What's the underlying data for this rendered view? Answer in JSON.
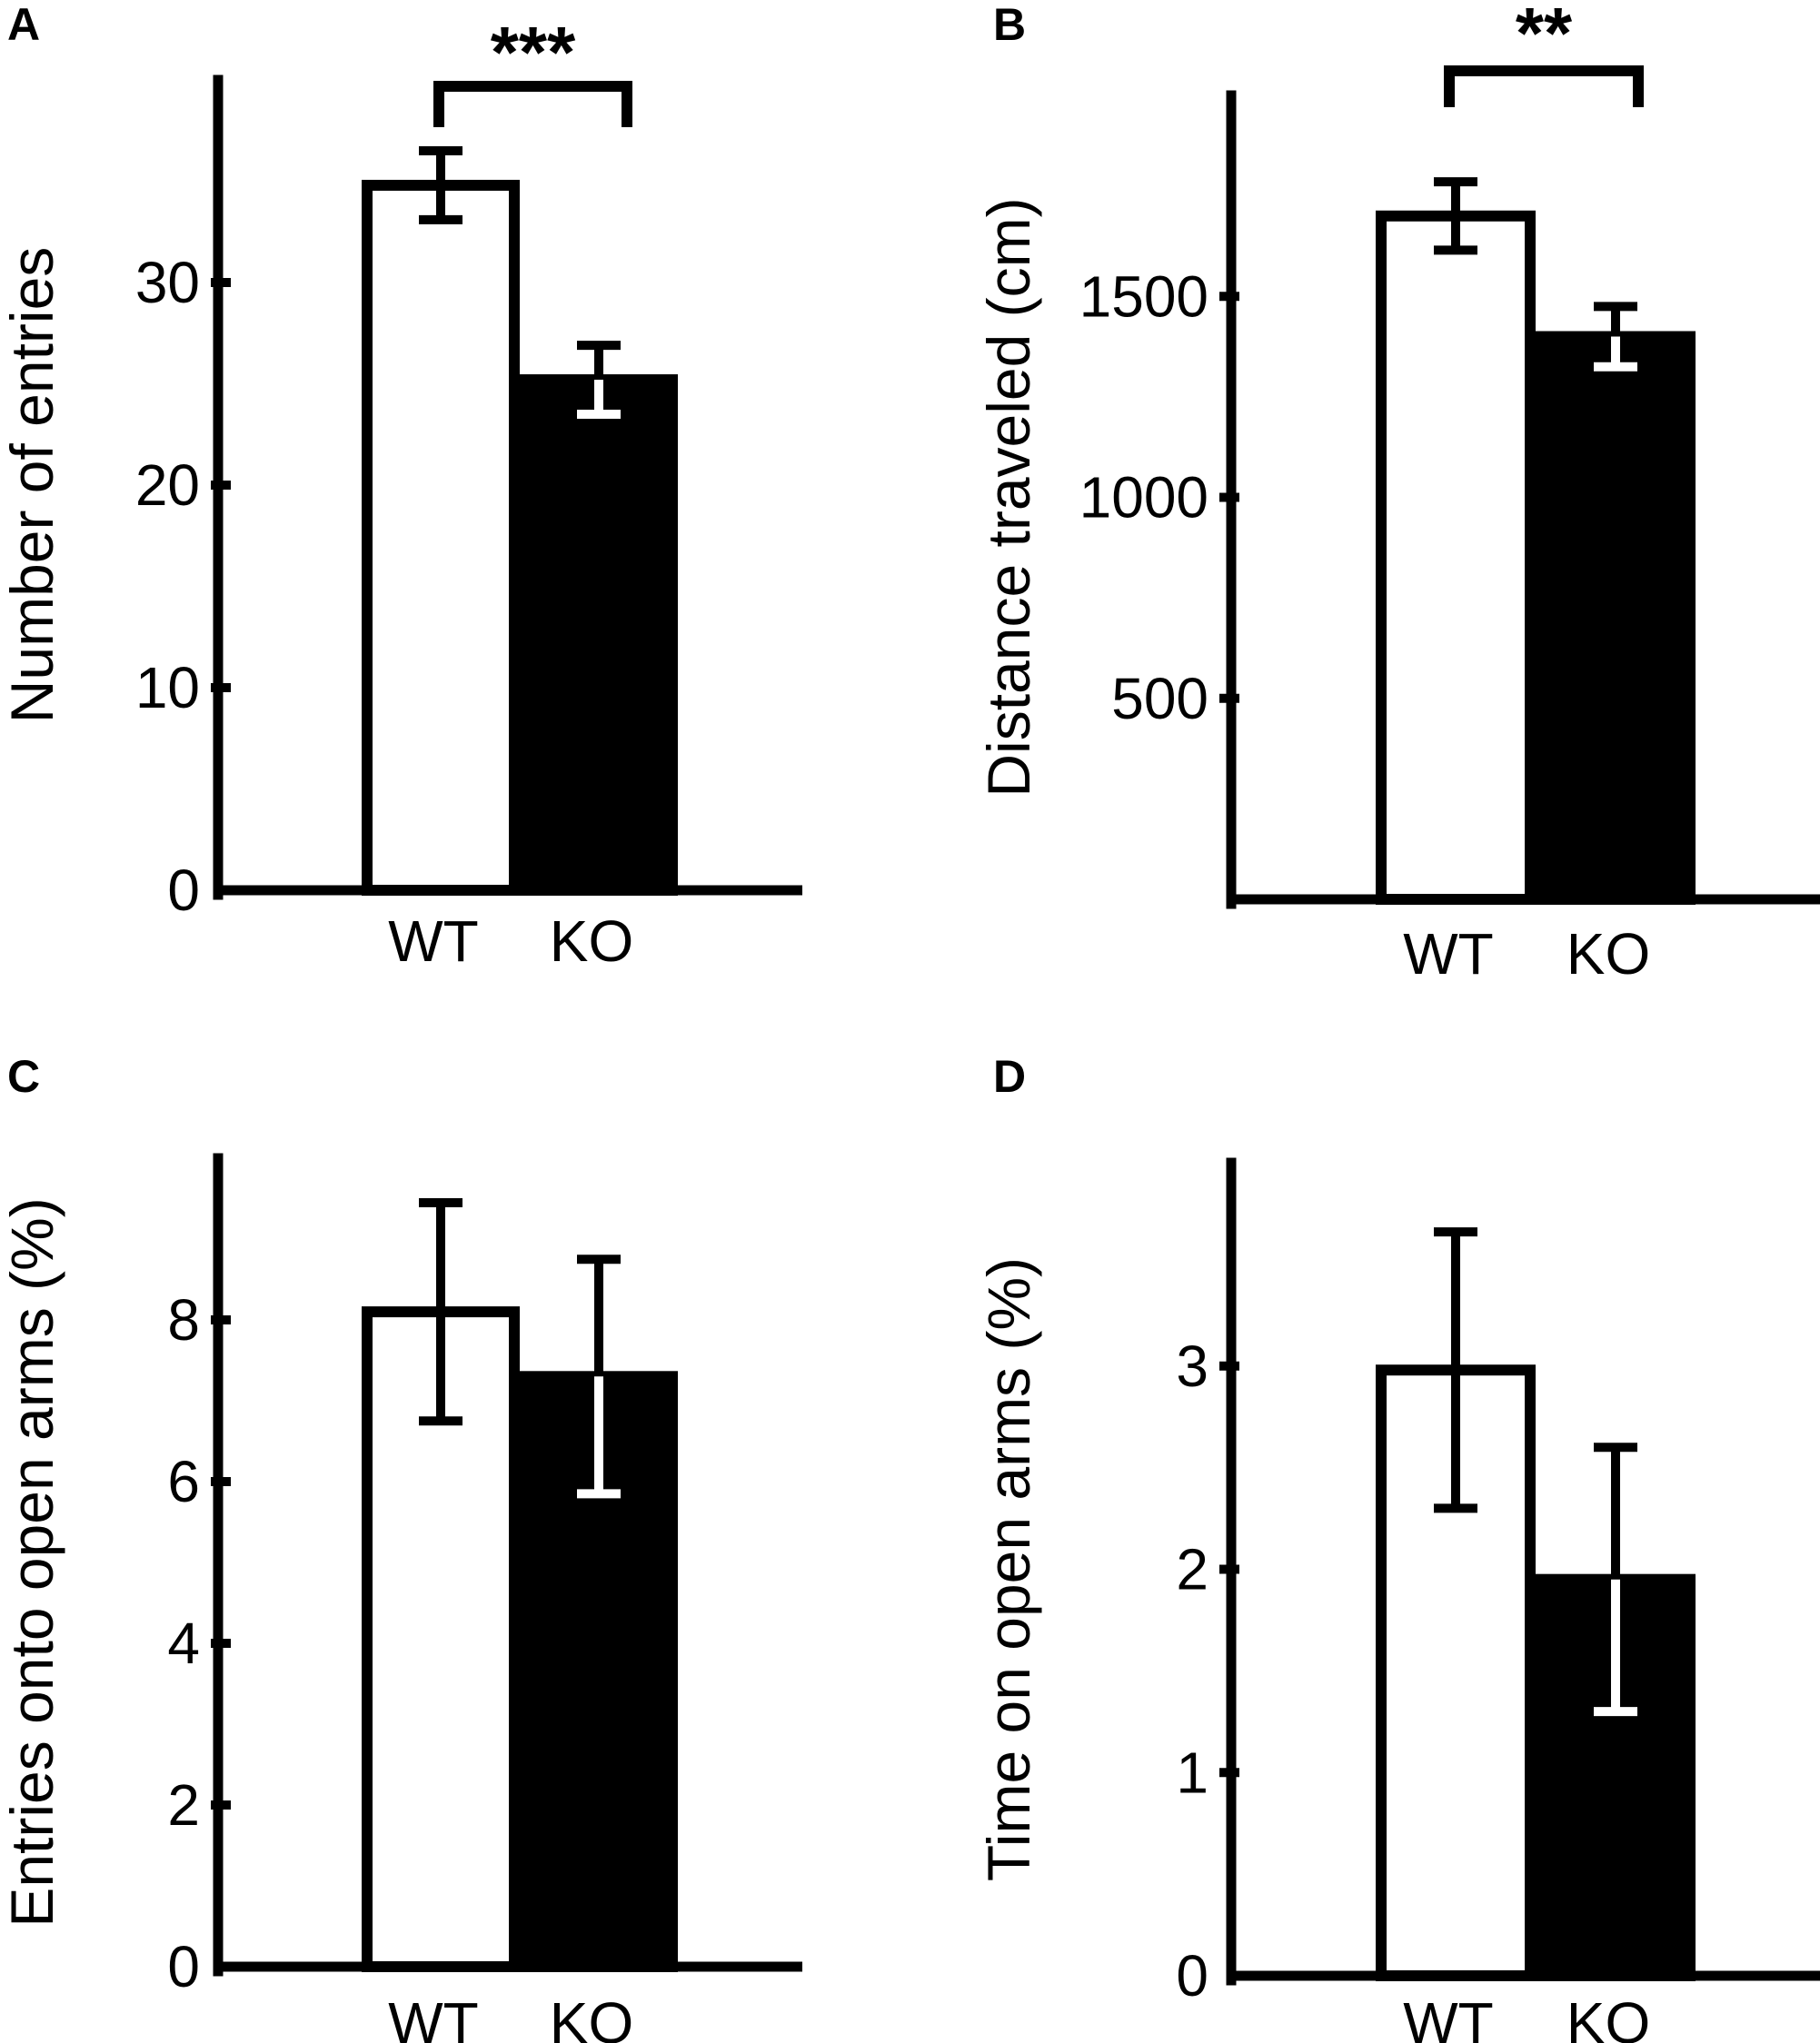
{
  "figure": {
    "panels": [
      "A",
      "B",
      "C",
      "D"
    ]
  },
  "chart_data": [
    {
      "panel": "A",
      "type": "bar",
      "categories": [
        "WT",
        "KO"
      ],
      "values": [
        34.8,
        25.2
      ],
      "errors": [
        1.7,
        1.7
      ],
      "bar_fills": [
        "#ffffff",
        "#000000"
      ],
      "ylabel": "Number of entries",
      "xlabel": "",
      "ylim": [
        0,
        40
      ],
      "yticks": [
        0,
        10,
        20,
        30
      ],
      "significance": "***"
    },
    {
      "panel": "B",
      "type": "bar",
      "categories": [
        "WT",
        "KO"
      ],
      "values": [
        1700,
        1400
      ],
      "errors": [
        85,
        75
      ],
      "bar_fills": [
        "#ffffff",
        "#000000"
      ],
      "ylabel": "Distance traveled (cm)",
      "xlabel": "",
      "ylim": [
        0,
        2000
      ],
      "yticks": [
        500,
        1000,
        1500
      ],
      "significance": "**"
    },
    {
      "panel": "C",
      "type": "bar",
      "categories": [
        "WT",
        "KO"
      ],
      "values": [
        8.1,
        7.3
      ],
      "errors": [
        1.35,
        1.45
      ],
      "bar_fills": [
        "#ffffff",
        "#000000"
      ],
      "ylabel": "Entries onto open arms (%)",
      "xlabel": "",
      "ylim": [
        0,
        10
      ],
      "yticks": [
        0,
        2,
        4,
        6,
        8
      ],
      "significance": ""
    },
    {
      "panel": "D",
      "type": "bar",
      "categories": [
        "WT",
        "KO"
      ],
      "values": [
        2.98,
        1.95
      ],
      "errors": [
        0.68,
        0.65
      ],
      "bar_fills": [
        "#ffffff",
        "#000000"
      ],
      "ylabel": "Time on open arms (%)",
      "xlabel": "",
      "ylim": [
        0,
        4
      ],
      "yticks": [
        0,
        1,
        2,
        3
      ],
      "significance": ""
    }
  ]
}
